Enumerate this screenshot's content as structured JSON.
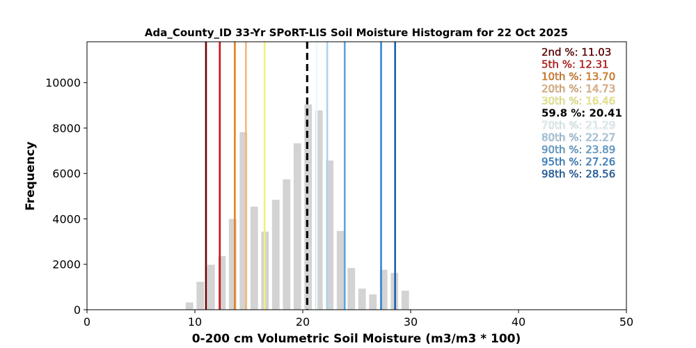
{
  "chart_data": {
    "type": "bar",
    "title": "Ada_County_ID 33-Yr SPoRT-LIS Soil Moisture Histogram for 22 Oct 2025",
    "xlabel": "0-200 cm Volumetric Soil Moisture (m3/m3 * 100)",
    "ylabel": "Frequency",
    "xlim": [
      0,
      50
    ],
    "ylim": [
      0,
      11800
    ],
    "xticks": [
      0,
      10,
      20,
      30,
      40,
      50
    ],
    "yticks": [
      0,
      2000,
      4000,
      6000,
      8000,
      10000
    ],
    "grid": false,
    "bar_color": "#d3d3d3",
    "bin_width": 0.7,
    "bins": [
      {
        "x": 9.5,
        "value": 320
      },
      {
        "x": 10.5,
        "value": 1230
      },
      {
        "x": 11.5,
        "value": 1980
      },
      {
        "x": 12.5,
        "value": 2360
      },
      {
        "x": 13.5,
        "value": 4000
      },
      {
        "x": 14.5,
        "value": 7820
      },
      {
        "x": 15.5,
        "value": 4540
      },
      {
        "x": 16.5,
        "value": 3440
      },
      {
        "x": 17.5,
        "value": 4840
      },
      {
        "x": 18.5,
        "value": 5740
      },
      {
        "x": 19.5,
        "value": 7330
      },
      {
        "x": 20.5,
        "value": 9040
      },
      {
        "x": 21.5,
        "value": 8780
      },
      {
        "x": 22.5,
        "value": 6570
      },
      {
        "x": 23.5,
        "value": 3470
      },
      {
        "x": 24.5,
        "value": 1840
      },
      {
        "x": 25.5,
        "value": 930
      },
      {
        "x": 26.5,
        "value": 680
      },
      {
        "x": 27.5,
        "value": 1760
      },
      {
        "x": 28.5,
        "value": 1620
      },
      {
        "x": 29.5,
        "value": 840
      }
    ],
    "percentile_lines": [
      {
        "label": "2nd %: 11.03",
        "value": 11.03,
        "color": "#6b0000"
      },
      {
        "label": "5th %: 12.31",
        "value": 12.31,
        "color": "#cc1111"
      },
      {
        "label": "10th %: 13.70",
        "value": 13.7,
        "color": "#e8801a"
      },
      {
        "label": "20th %: 14.73",
        "value": 14.73,
        "color": "#f5b77a"
      },
      {
        "label": "30th %: 16.46",
        "value": 16.46,
        "color": "#f5f07a"
      },
      {
        "label": "59.8 %: 20.41",
        "value": 20.41,
        "color": "#000000",
        "dashed": true
      },
      {
        "label": "70th %: 21.29",
        "value": 21.29,
        "color": "#e6fbff"
      },
      {
        "label": "80th %: 22.27",
        "value": 22.27,
        "color": "#a9d4f2"
      },
      {
        "label": "90th %: 23.89",
        "value": 23.89,
        "color": "#5ca7e0"
      },
      {
        "label": "95th %: 27.26",
        "value": 27.26,
        "color": "#2f87d6"
      },
      {
        "label": "98th %: 28.56",
        "value": 28.56,
        "color": "#1a5fae"
      }
    ]
  }
}
